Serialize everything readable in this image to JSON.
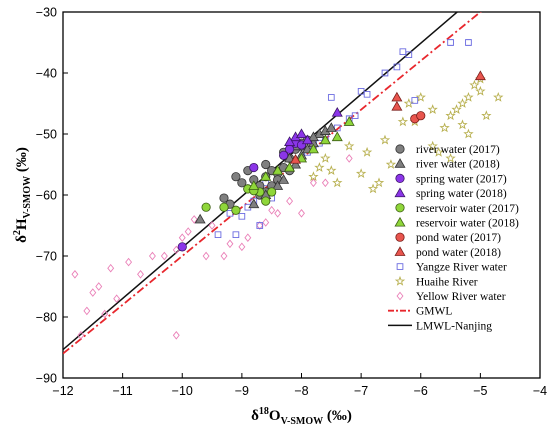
{
  "chart_data": {
    "type": "scatter",
    "xlim": [
      -12,
      -4
    ],
    "ylim": [
      -90,
      -30
    ],
    "x_ticks": [
      -12,
      -11,
      -10,
      -9,
      -8,
      -7,
      -6,
      -5,
      -4
    ],
    "y_ticks": [
      -90,
      -80,
      -70,
      -60,
      -50,
      -40,
      -30
    ],
    "x_ticks_text": [
      "−12",
      "−11",
      "−10",
      "−9",
      "−8",
      "−7",
      "−6",
      "−5",
      "−4"
    ],
    "y_ticks_text": [
      "−90",
      "−80",
      "−70",
      "−60",
      "−50",
      "−40",
      "−30"
    ],
    "xlabel": {
      "pre": "δ",
      "sup": "18",
      "main": "O",
      "sub": "V-SMOW",
      "unit": " (‰)"
    },
    "ylabel": {
      "pre": "δ",
      "sup": "2",
      "main": "H",
      "sub": "V-SMOW",
      "unit": " (‰)"
    },
    "grid": false,
    "legend_position": "bottom-right",
    "series": [
      {
        "name": "river water (2017)",
        "marker": "circle",
        "color": "#7f7f7f",
        "stroke": "#333333",
        "points": [
          [
            -9.3,
            -60.5
          ],
          [
            -9.2,
            -61.5
          ],
          [
            -9.0,
            -58
          ],
          [
            -8.9,
            -59
          ],
          [
            -8.8,
            -57.5
          ],
          [
            -8.7,
            -58.5
          ],
          [
            -8.6,
            -57
          ],
          [
            -8.5,
            -56
          ],
          [
            -8.6,
            -55
          ],
          [
            -8.4,
            -56.5
          ],
          [
            -8.3,
            -55.5
          ],
          [
            -8.2,
            -54
          ],
          [
            -8.5,
            -58.5
          ],
          [
            -8.7,
            -60
          ],
          [
            -8.4,
            -57.5
          ],
          [
            -8.1,
            -52.5
          ],
          [
            -8.0,
            -52
          ],
          [
            -7.9,
            -51
          ],
          [
            -8.3,
            -53
          ],
          [
            -8.0,
            -51.5
          ],
          [
            -8.9,
            -56
          ],
          [
            -9.1,
            -57
          ],
          [
            -8.6,
            -59.5
          ],
          [
            -8.2,
            -56
          ]
        ]
      },
      {
        "name": "river water (2018)",
        "marker": "triangle",
        "color": "#7f7f7f",
        "stroke": "#333333",
        "points": [
          [
            -9.7,
            -64
          ],
          [
            -8.8,
            -61.5
          ],
          [
            -8.6,
            -60
          ],
          [
            -8.4,
            -58.5
          ],
          [
            -8.3,
            -57.5
          ],
          [
            -8.1,
            -55
          ],
          [
            -8.0,
            -53.5
          ],
          [
            -7.9,
            -52.5
          ],
          [
            -7.8,
            -51.5
          ],
          [
            -7.7,
            -50
          ],
          [
            -7.6,
            -49.5
          ],
          [
            -7.5,
            -49
          ],
          [
            -7.8,
            -50.5
          ],
          [
            -7.6,
            -51
          ],
          [
            -8.1,
            -52
          ],
          [
            -8.2,
            -54
          ]
        ]
      },
      {
        "name": "spring water (2017)",
        "marker": "circle",
        "color": "#8b35e8",
        "stroke": "#3a1466",
        "points": [
          [
            -10.0,
            -68.5
          ],
          [
            -8.8,
            -55.5
          ],
          [
            -8.3,
            -53.5
          ],
          [
            -8.1,
            -51.5
          ],
          [
            -8.2,
            -52.5
          ],
          [
            -8.0,
            -51.8
          ]
        ]
      },
      {
        "name": "spring water (2018)",
        "marker": "triangle",
        "color": "#8b35e8",
        "stroke": "#3a1466",
        "points": [
          [
            -8.1,
            -50.5
          ],
          [
            -8.0,
            -50
          ],
          [
            -7.9,
            -51
          ],
          [
            -8.2,
            -51.3
          ],
          [
            -7.4,
            -46.5
          ]
        ]
      },
      {
        "name": "reservoir water (2017)",
        "marker": "circle",
        "color": "#8fd63a",
        "stroke": "#3d5f14",
        "points": [
          [
            -9.6,
            -62
          ],
          [
            -9.3,
            -62
          ],
          [
            -9.1,
            -62.5
          ],
          [
            -8.9,
            -59
          ],
          [
            -8.7,
            -59.5
          ],
          [
            -8.6,
            -61
          ],
          [
            -8.8,
            -59.3
          ],
          [
            -8.5,
            -59.5
          ]
        ]
      },
      {
        "name": "reservoir water (2018)",
        "marker": "triangle",
        "color": "#8fd63a",
        "stroke": "#3d5f14",
        "points": [
          [
            -8.8,
            -58.5
          ],
          [
            -8.6,
            -57
          ],
          [
            -8.4,
            -56
          ],
          [
            -8.2,
            -55.5
          ],
          [
            -8.0,
            -54
          ],
          [
            -7.8,
            -52.5
          ],
          [
            -7.6,
            -51
          ],
          [
            -7.4,
            -50.5
          ],
          [
            -7.2,
            -48
          ]
        ]
      },
      {
        "name": "pond water (2017)",
        "marker": "circle",
        "color": "#e8554e",
        "stroke": "#7a1e1a",
        "points": [
          [
            -6.1,
            -47.5
          ],
          [
            -6.0,
            -47
          ]
        ]
      },
      {
        "name": "pond water (2018)",
        "marker": "triangle",
        "color": "#e8554e",
        "stroke": "#7a1e1a",
        "points": [
          [
            -8.1,
            -54.2
          ],
          [
            -6.4,
            -44
          ],
          [
            -6.4,
            -45.5
          ],
          [
            -5.0,
            -40.5
          ]
        ]
      },
      {
        "name": "Yangze River water",
        "marker": "square",
        "color": "none",
        "stroke": "#6a6ae0",
        "points": [
          [
            -9.4,
            -66.5
          ],
          [
            -9.2,
            -63
          ],
          [
            -9.0,
            -63.5
          ],
          [
            -8.9,
            -62
          ],
          [
            -8.8,
            -61
          ],
          [
            -8.6,
            -58
          ],
          [
            -8.4,
            -57.5
          ],
          [
            -8.2,
            -56
          ],
          [
            -8.0,
            -54
          ],
          [
            -7.9,
            -53
          ],
          [
            -7.8,
            -52
          ],
          [
            -7.7,
            -51.5
          ],
          [
            -7.6,
            -50.5
          ],
          [
            -7.4,
            -49
          ],
          [
            -7.2,
            -47.5
          ],
          [
            -7.5,
            -44
          ],
          [
            -7.0,
            -43
          ],
          [
            -6.9,
            -43.5
          ],
          [
            -6.6,
            -40
          ],
          [
            -6.4,
            -39
          ],
          [
            -6.2,
            -37
          ],
          [
            -6.1,
            -44.5
          ],
          [
            -5.5,
            -35
          ],
          [
            -5.2,
            -35
          ],
          [
            -6.3,
            -36.5
          ],
          [
            -7.1,
            -47
          ],
          [
            -8.5,
            -60.5
          ],
          [
            -9.1,
            -66.5
          ],
          [
            -8.7,
            -65
          ]
        ]
      },
      {
        "name": "Huaihe River",
        "marker": "star",
        "color": "none",
        "stroke": "#b8b050",
        "points": [
          [
            -7.8,
            -57
          ],
          [
            -7.6,
            -54
          ],
          [
            -7.7,
            -55.5
          ],
          [
            -7.5,
            -56
          ],
          [
            -7.2,
            -52
          ],
          [
            -7.0,
            -56.5
          ],
          [
            -6.8,
            -59
          ],
          [
            -6.7,
            -58
          ],
          [
            -6.5,
            -55
          ],
          [
            -6.6,
            -51
          ],
          [
            -6.3,
            -48
          ],
          [
            -6.2,
            -45
          ],
          [
            -6.0,
            -44
          ],
          [
            -5.8,
            -46
          ],
          [
            -5.7,
            -53
          ],
          [
            -5.6,
            -49
          ],
          [
            -5.5,
            -54
          ],
          [
            -5.5,
            -47
          ],
          [
            -5.3,
            -48.5
          ],
          [
            -5.3,
            -45
          ],
          [
            -5.2,
            -44
          ],
          [
            -5.1,
            -42
          ],
          [
            -5.0,
            -43
          ],
          [
            -5.0,
            -41
          ],
          [
            -4.9,
            -47
          ],
          [
            -4.7,
            -44
          ],
          [
            -5.2,
            -50
          ],
          [
            -5.8,
            -52
          ],
          [
            -6.1,
            -48
          ],
          [
            -5.4,
            -46
          ],
          [
            -7.4,
            -58
          ],
          [
            -6.9,
            -53
          ]
        ]
      },
      {
        "name": "Yellow River water",
        "marker": "diamond",
        "color": "none",
        "stroke": "#ea80b8",
        "points": [
          [
            -11.8,
            -73
          ],
          [
            -11.5,
            -76
          ],
          [
            -11.4,
            -75
          ],
          [
            -11.6,
            -79
          ],
          [
            -11.2,
            -72
          ],
          [
            -11.1,
            -77
          ],
          [
            -10.9,
            -71
          ],
          [
            -10.7,
            -73
          ],
          [
            -10.5,
            -70
          ],
          [
            -10.3,
            -70
          ],
          [
            -10.1,
            -69
          ],
          [
            -10.0,
            -67
          ],
          [
            -9.9,
            -66
          ],
          [
            -9.8,
            -64
          ],
          [
            -9.5,
            -65
          ],
          [
            -9.3,
            -70
          ],
          [
            -9.2,
            -68
          ],
          [
            -9.0,
            -68.5
          ],
          [
            -8.9,
            -67
          ],
          [
            -8.7,
            -65
          ],
          [
            -8.5,
            -62.5
          ],
          [
            -8.4,
            -63
          ],
          [
            -8.2,
            -61
          ],
          [
            -8.0,
            -63
          ],
          [
            -7.8,
            -58
          ],
          [
            -7.6,
            -58
          ],
          [
            -7.2,
            -54
          ],
          [
            -10.1,
            -83
          ],
          [
            -11.7,
            -83
          ],
          [
            -11.3,
            -79.5
          ],
          [
            -9.6,
            -70
          ],
          [
            -8.6,
            -64.5
          ]
        ]
      }
    ],
    "lines": [
      {
        "name": "GMWL",
        "style": "dashdot",
        "color": "#e8272d",
        "slope": 8,
        "intercept": 10
      },
      {
        "name": "LMWL-Nanjing",
        "style": "solid",
        "color": "#111111",
        "slope": 8.37,
        "intercept": 15.1
      }
    ]
  }
}
